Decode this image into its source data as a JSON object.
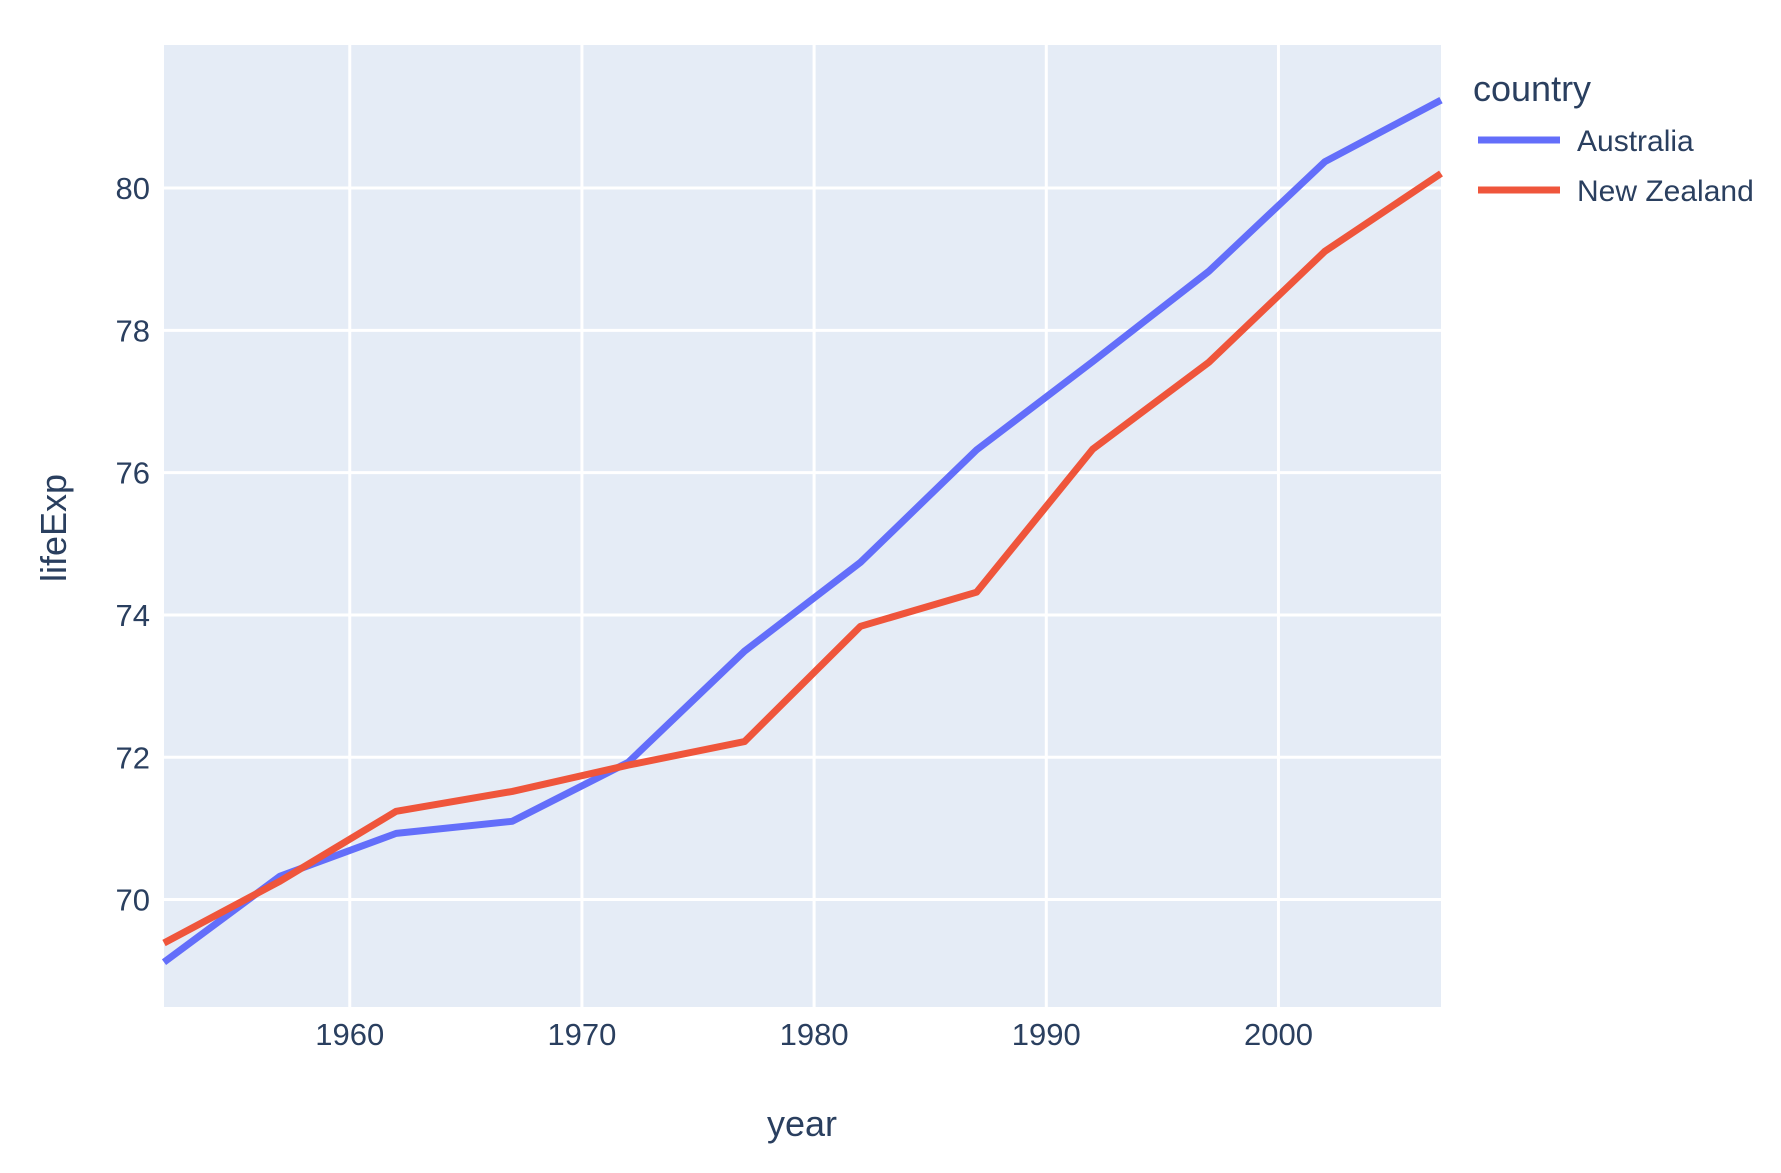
{
  "chart_data": {
    "type": "line",
    "title": "",
    "xlabel": "year",
    "ylabel": "lifeExp",
    "x": [
      1952,
      1957,
      1962,
      1967,
      1972,
      1977,
      1982,
      1987,
      1992,
      1997,
      2002,
      2007
    ],
    "series": [
      {
        "name": "Australia",
        "color": "#636EFA",
        "values": [
          69.12,
          70.33,
          70.93,
          71.1,
          71.93,
          73.49,
          74.74,
          76.32,
          77.56,
          78.83,
          80.37,
          81.235
        ]
      },
      {
        "name": "New Zealand",
        "color": "#EF553B",
        "values": [
          69.39,
          70.26,
          71.24,
          71.52,
          71.89,
          72.22,
          73.84,
          74.32,
          76.33,
          77.55,
          79.11,
          80.204
        ]
      }
    ],
    "xlim": [
      1952,
      2007
    ],
    "ylim": [
      68.49,
      82.01
    ],
    "xticks": [
      1960,
      1970,
      1980,
      1990,
      2000
    ],
    "yticks": [
      70,
      72,
      74,
      76,
      78,
      80
    ],
    "grid": true,
    "legend": {
      "title": "country",
      "position": "right"
    },
    "colors": {
      "plot_bg": "#E5ECF6",
      "grid": "#FFFFFF",
      "text": "#2A3F5F",
      "paper_bg": "#FFFFFF"
    }
  }
}
